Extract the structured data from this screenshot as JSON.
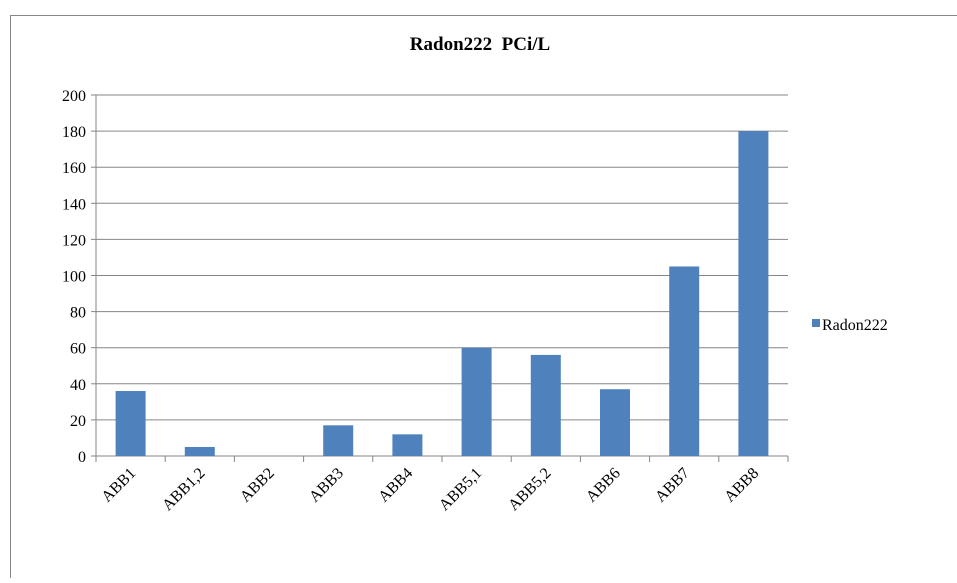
{
  "chart_data": {
    "type": "bar",
    "title": "Radon222  PCi/L",
    "categories": [
      "ABB1",
      "ABB1,2",
      "ABB2",
      "ABB3",
      "ABB4",
      "ABB5,1",
      "ABB5,2",
      "ABB6",
      "ABB7",
      "ABB8"
    ],
    "series": [
      {
        "name": "Radon222",
        "color": "#4f81bd",
        "values": [
          36,
          5,
          0,
          17,
          12,
          60,
          56,
          37,
          105,
          180
        ]
      }
    ],
    "ylim": [
      0,
      200
    ],
    "yticks": [
      0,
      20,
      40,
      60,
      80,
      100,
      120,
      140,
      160,
      180,
      200
    ],
    "grid": true,
    "legend": "right"
  }
}
